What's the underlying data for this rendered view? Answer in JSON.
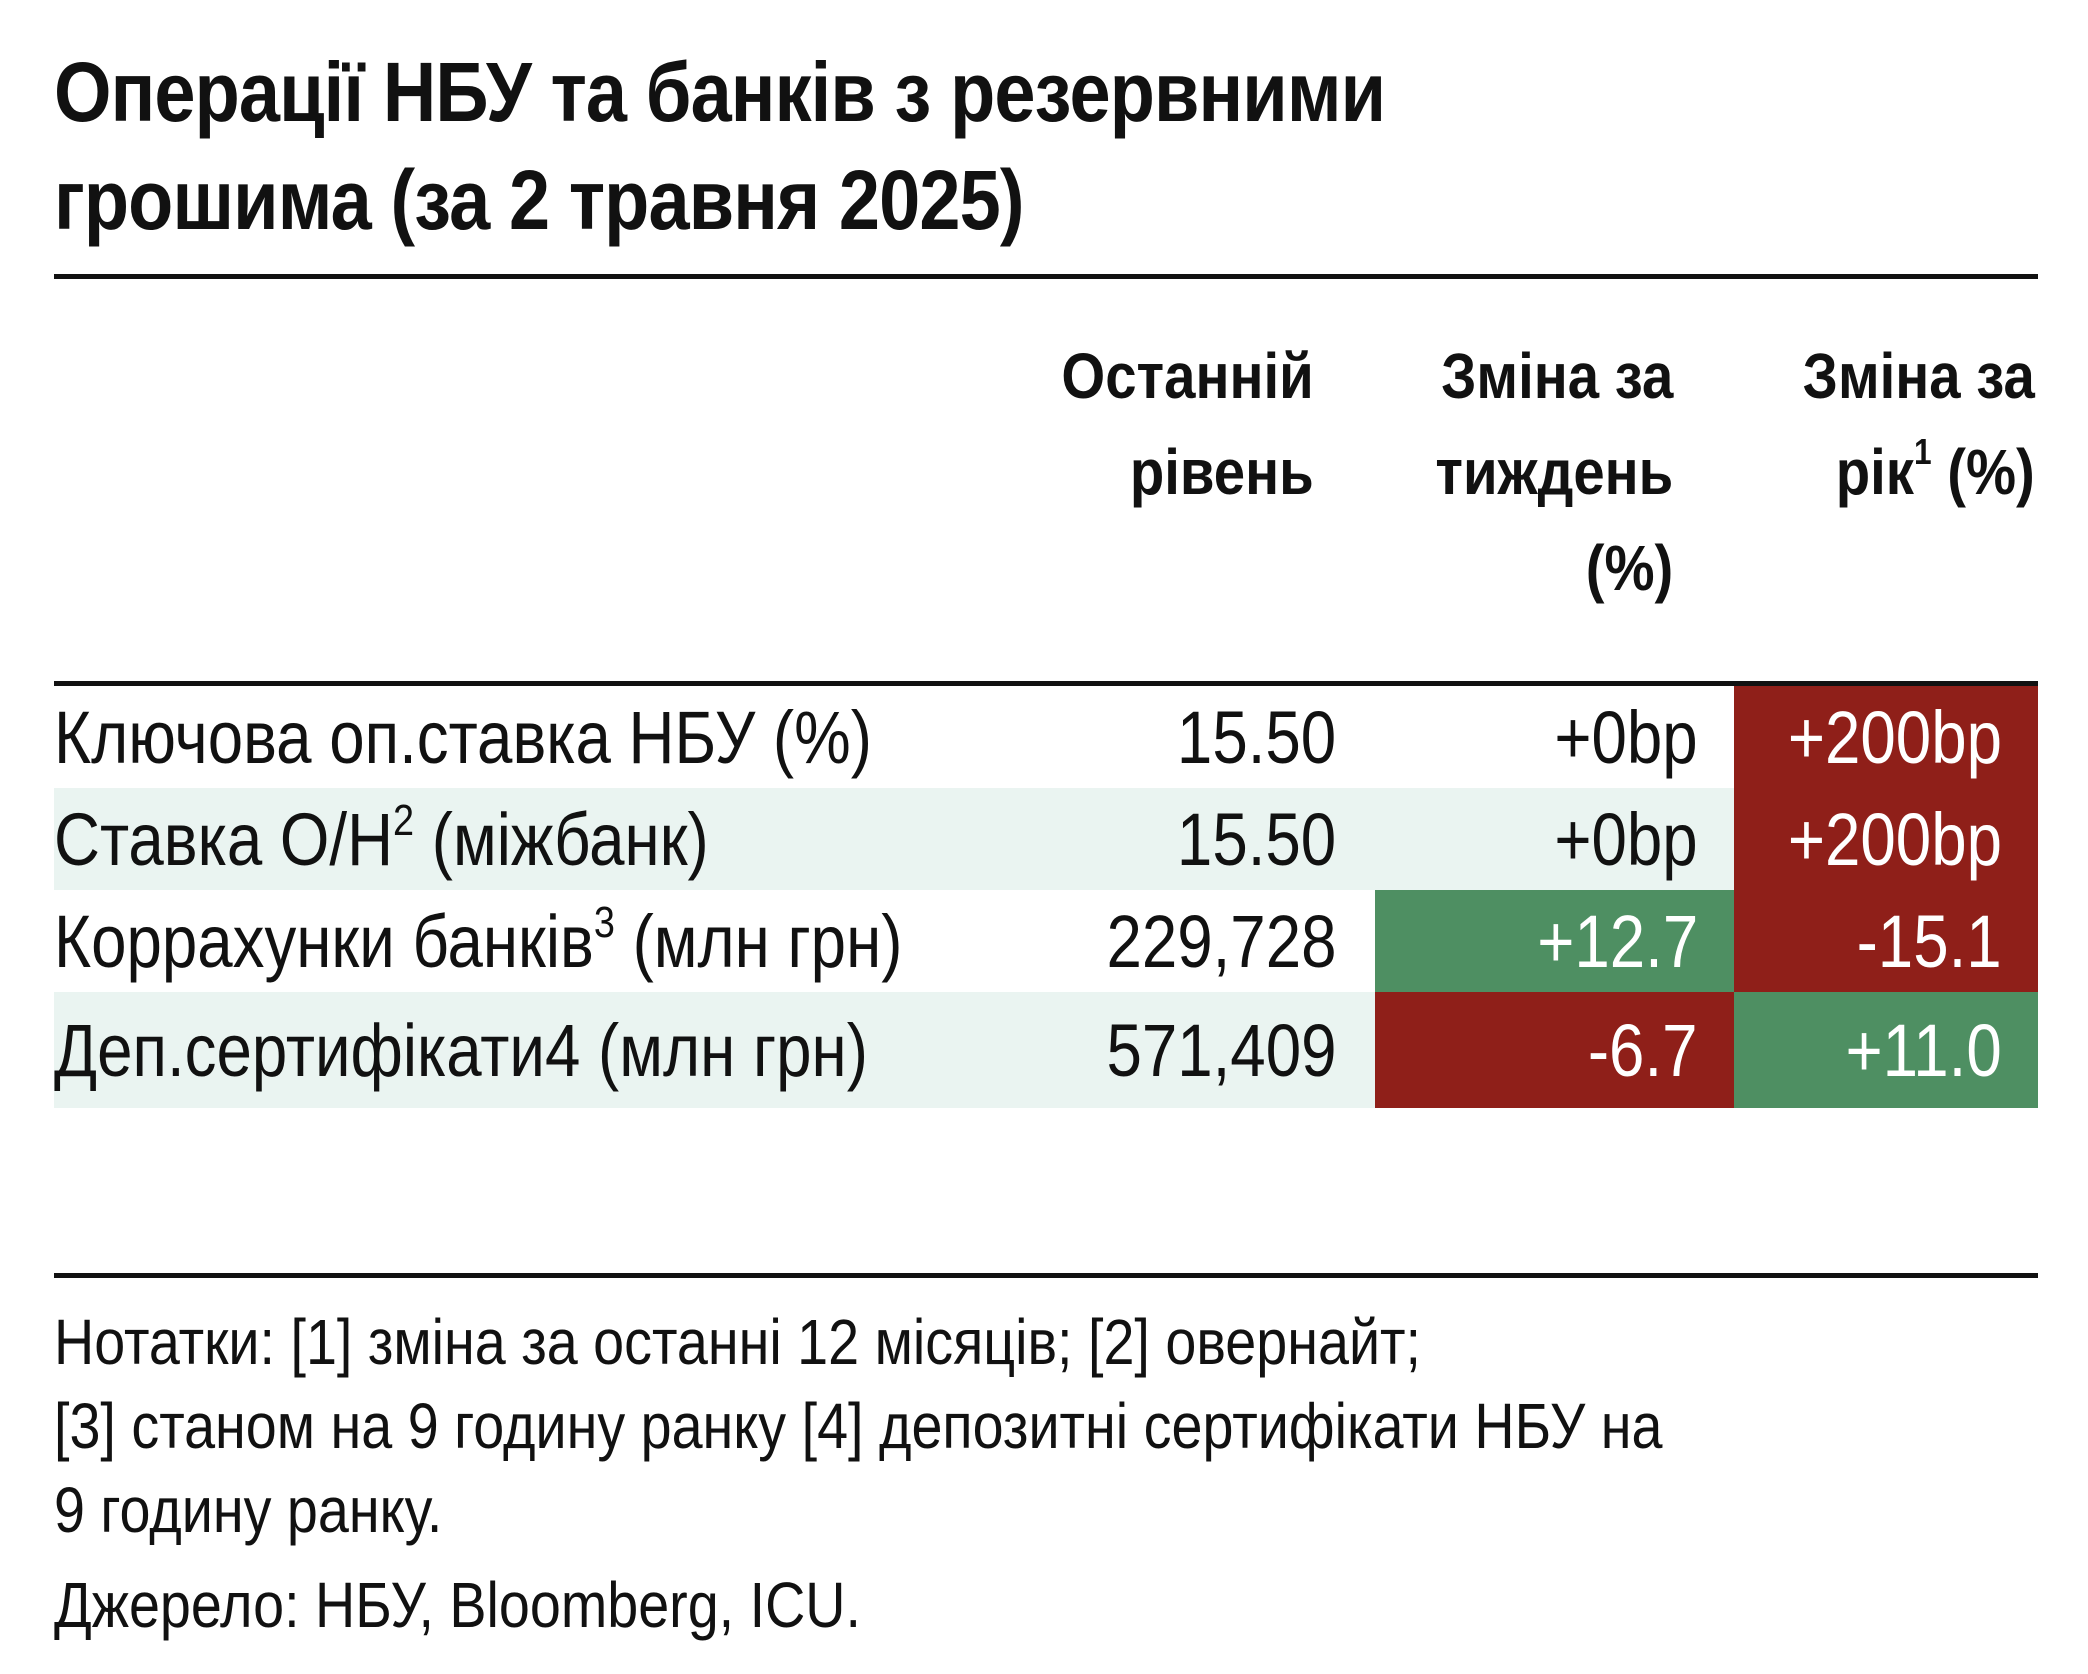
{
  "title": {
    "line1": "Операції НБУ та банків з резервними",
    "line2": "грошима (за 2 травня 2025)"
  },
  "header": {
    "col_level": {
      "line1": "Останній",
      "line2": "рівень"
    },
    "col_week": {
      "line1": "Зміна за",
      "line2": "тиждень",
      "line3": "(%)"
    },
    "col_year": {
      "line1": "Зміна за",
      "line2_pre": "рік",
      "line2_sup": "1",
      "line2_post": " (%)"
    }
  },
  "chart_data": {
    "type": "table",
    "title": "Операції НБУ та банків з резервними грошима (за 2 травня 2025)",
    "columns": [
      "Останній рівень",
      "Зміна за тиждень (%)",
      "Зміна за рік¹ (%)"
    ],
    "rows": [
      {
        "label": "Ключова оп.ставка НБУ (%)",
        "label_main": "Ключова оп.ставка НБУ (%)",
        "label_sup": "",
        "label_post": "",
        "level": "15.50",
        "week": "+0bp",
        "year": "+200bp",
        "week_color": "none",
        "year_color": "negative",
        "shaded": false
      },
      {
        "label": "Ставка O/H² (міжбанк)",
        "label_main": "Ставка O/H",
        "label_sup": "2",
        "label_post": " (міжбанк)",
        "level": "15.50",
        "week": "+0bp",
        "year": "+200bp",
        "week_color": "none",
        "year_color": "negative",
        "shaded": true
      },
      {
        "label": "Коррахунки банків³ (млн грн)",
        "label_main": "Коррахунки банків",
        "label_sup": "3",
        "label_post": " (млн грн)",
        "level": "229,728",
        "week": "+12.7",
        "year": "-15.1",
        "week_color": "positive",
        "year_color": "negative",
        "shaded": false
      },
      {
        "label": "Деп.сертифікати4 (млн грн)",
        "label_main": "Деп.сертифікати4 (млн грн)",
        "label_sup": "",
        "label_post": "",
        "level": "571,409",
        "week": "-6.7",
        "year": "+11.0",
        "week_color": "negative",
        "year_color": "positive",
        "shaded": true
      }
    ]
  },
  "colors": {
    "negative": "#8f1f19",
    "positive": "#4e8f62",
    "row_shade": "#eaf4f1",
    "rule": "#111111"
  },
  "notes": {
    "line1": "Нотатки: [1] зміна за останні 12 місяців; [2] овернайт;",
    "line2": "[3] станом на 9 годину ранку [4] депозитні сертифікати НБУ на",
    "line3": "9 годину ранку."
  },
  "source": "Джерело: НБУ, Bloomberg, ICU."
}
